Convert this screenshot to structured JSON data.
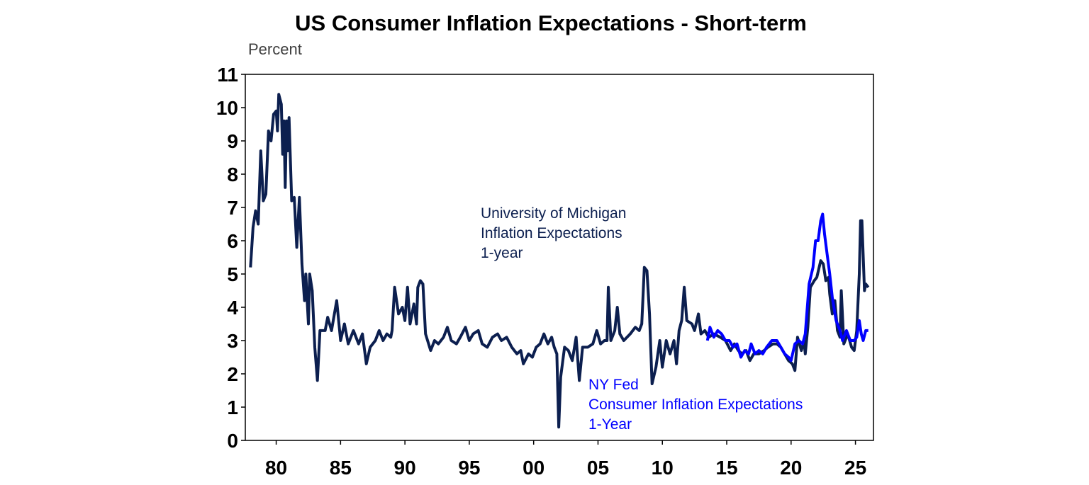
{
  "chart_data": {
    "type": "line",
    "title": "US Consumer Inflation Expectations - Short-term",
    "ylabel": "Percent",
    "xlabel": "",
    "ylim": [
      0,
      11
    ],
    "xlim": [
      1977.6,
      2026.4
    ],
    "grid": false,
    "yticks": [
      "0",
      "1",
      "2",
      "3",
      "4",
      "5",
      "6",
      "7",
      "8",
      "9",
      "10",
      "11"
    ],
    "xticks": [
      {
        "year": 1980,
        "label": "80"
      },
      {
        "year": 1985,
        "label": "85"
      },
      {
        "year": 1990,
        "label": "90"
      },
      {
        "year": 1995,
        "label": "95"
      },
      {
        "year": 2000,
        "label": "00"
      },
      {
        "year": 2005,
        "label": "05"
      },
      {
        "year": 2010,
        "label": "10"
      },
      {
        "year": 2015,
        "label": "15"
      },
      {
        "year": 2020,
        "label": "20"
      },
      {
        "year": 2025,
        "label": "25"
      }
    ],
    "series": [
      {
        "name": "University of Michigan Inflation Expectations 1-year",
        "label_lines": [
          "University of Michigan",
          "Inflation Expectations",
          "1-year"
        ],
        "color": "#0c1f4f",
        "points": [
          [
            1978.0,
            5.2
          ],
          [
            1978.2,
            6.4
          ],
          [
            1978.4,
            6.9
          ],
          [
            1978.6,
            6.5
          ],
          [
            1978.8,
            8.7
          ],
          [
            1979.0,
            7.2
          ],
          [
            1979.2,
            7.4
          ],
          [
            1979.4,
            9.3
          ],
          [
            1979.6,
            9.0
          ],
          [
            1979.8,
            9.8
          ],
          [
            1980.0,
            9.9
          ],
          [
            1980.1,
            9.3
          ],
          [
            1980.2,
            10.4
          ],
          [
            1980.4,
            10.1
          ],
          [
            1980.5,
            8.6
          ],
          [
            1980.6,
            9.6
          ],
          [
            1980.7,
            7.6
          ],
          [
            1980.8,
            9.6
          ],
          [
            1980.9,
            8.7
          ],
          [
            1981.0,
            9.7
          ],
          [
            1981.2,
            7.2
          ],
          [
            1981.4,
            7.3
          ],
          [
            1981.6,
            5.8
          ],
          [
            1981.8,
            7.3
          ],
          [
            1982.0,
            5.3
          ],
          [
            1982.2,
            4.2
          ],
          [
            1982.3,
            5.0
          ],
          [
            1982.5,
            3.5
          ],
          [
            1982.6,
            5.0
          ],
          [
            1982.8,
            4.5
          ],
          [
            1983.0,
            2.8
          ],
          [
            1983.2,
            1.8
          ],
          [
            1983.4,
            3.3
          ],
          [
            1983.8,
            3.3
          ],
          [
            1984.0,
            3.7
          ],
          [
            1984.3,
            3.3
          ],
          [
            1984.7,
            4.2
          ],
          [
            1985.0,
            3.0
          ],
          [
            1985.3,
            3.5
          ],
          [
            1985.6,
            2.9
          ],
          [
            1986.0,
            3.3
          ],
          [
            1986.4,
            2.9
          ],
          [
            1986.7,
            3.2
          ],
          [
            1987.0,
            2.3
          ],
          [
            1987.3,
            2.8
          ],
          [
            1987.7,
            3.0
          ],
          [
            1988.0,
            3.3
          ],
          [
            1988.3,
            3.0
          ],
          [
            1988.6,
            3.2
          ],
          [
            1988.9,
            3.1
          ],
          [
            1989.0,
            3.3
          ],
          [
            1989.2,
            4.6
          ],
          [
            1989.5,
            3.8
          ],
          [
            1989.8,
            4.0
          ],
          [
            1990.0,
            3.6
          ],
          [
            1990.2,
            4.6
          ],
          [
            1990.4,
            3.5
          ],
          [
            1990.7,
            4.1
          ],
          [
            1990.9,
            3.5
          ],
          [
            1991.0,
            4.6
          ],
          [
            1991.2,
            4.8
          ],
          [
            1991.4,
            4.7
          ],
          [
            1991.6,
            3.2
          ],
          [
            1992.0,
            2.7
          ],
          [
            1992.3,
            3.0
          ],
          [
            1992.6,
            2.9
          ],
          [
            1993.0,
            3.1
          ],
          [
            1993.3,
            3.4
          ],
          [
            1993.6,
            3.0
          ],
          [
            1994.0,
            2.9
          ],
          [
            1994.3,
            3.1
          ],
          [
            1994.7,
            3.4
          ],
          [
            1995.0,
            3.0
          ],
          [
            1995.3,
            3.2
          ],
          [
            1995.7,
            3.3
          ],
          [
            1996.0,
            2.9
          ],
          [
            1996.4,
            2.8
          ],
          [
            1996.8,
            3.1
          ],
          [
            1997.2,
            3.2
          ],
          [
            1997.5,
            3.0
          ],
          [
            1997.9,
            3.1
          ],
          [
            1998.3,
            2.8
          ],
          [
            1998.7,
            2.6
          ],
          [
            1999.0,
            2.7
          ],
          [
            1999.2,
            2.3
          ],
          [
            1999.6,
            2.6
          ],
          [
            1999.9,
            2.5
          ],
          [
            2000.2,
            2.8
          ],
          [
            2000.5,
            2.9
          ],
          [
            2000.8,
            3.2
          ],
          [
            2001.1,
            2.9
          ],
          [
            2001.4,
            3.1
          ],
          [
            2001.6,
            2.8
          ],
          [
            2001.8,
            2.6
          ],
          [
            2001.95,
            0.4
          ],
          [
            2002.1,
            1.9
          ],
          [
            2002.4,
            2.8
          ],
          [
            2002.7,
            2.7
          ],
          [
            2003.0,
            2.4
          ],
          [
            2003.3,
            3.1
          ],
          [
            2003.55,
            1.8
          ],
          [
            2003.8,
            2.8
          ],
          [
            2004.2,
            2.8
          ],
          [
            2004.6,
            2.9
          ],
          [
            2004.9,
            3.3
          ],
          [
            2005.2,
            2.9
          ],
          [
            2005.5,
            3.0
          ],
          [
            2005.7,
            3.0
          ],
          [
            2005.8,
            4.6
          ],
          [
            2006.0,
            3.0
          ],
          [
            2006.3,
            3.3
          ],
          [
            2006.5,
            4.0
          ],
          [
            2006.7,
            3.2
          ],
          [
            2007.0,
            3.0
          ],
          [
            2007.5,
            3.2
          ],
          [
            2007.9,
            3.4
          ],
          [
            2008.2,
            3.3
          ],
          [
            2008.4,
            3.5
          ],
          [
            2008.6,
            5.2
          ],
          [
            2008.8,
            5.1
          ],
          [
            2009.0,
            3.8
          ],
          [
            2009.2,
            1.7
          ],
          [
            2009.5,
            2.2
          ],
          [
            2009.8,
            3.0
          ],
          [
            2010.0,
            2.2
          ],
          [
            2010.3,
            3.0
          ],
          [
            2010.6,
            2.6
          ],
          [
            2010.9,
            3.0
          ],
          [
            2011.1,
            2.3
          ],
          [
            2011.3,
            3.3
          ],
          [
            2011.5,
            3.6
          ],
          [
            2011.7,
            4.6
          ],
          [
            2011.9,
            3.6
          ],
          [
            2012.3,
            3.5
          ],
          [
            2012.5,
            3.3
          ],
          [
            2012.8,
            3.8
          ],
          [
            2013.0,
            3.2
          ],
          [
            2013.3,
            3.3
          ],
          [
            2013.6,
            3.1
          ],
          [
            2014.0,
            3.2
          ],
          [
            2014.5,
            3.1
          ],
          [
            2014.9,
            3.0
          ],
          [
            2015.3,
            2.7
          ],
          [
            2015.6,
            2.9
          ],
          [
            2015.9,
            2.7
          ],
          [
            2016.2,
            2.6
          ],
          [
            2016.5,
            2.7
          ],
          [
            2016.8,
            2.4
          ],
          [
            2017.1,
            2.6
          ],
          [
            2017.5,
            2.6
          ],
          [
            2017.9,
            2.7
          ],
          [
            2018.2,
            2.8
          ],
          [
            2018.6,
            2.9
          ],
          [
            2018.9,
            2.9
          ],
          [
            2019.2,
            2.8
          ],
          [
            2019.5,
            2.6
          ],
          [
            2019.8,
            2.4
          ],
          [
            2020.1,
            2.3
          ],
          [
            2020.3,
            2.1
          ],
          [
            2020.5,
            3.1
          ],
          [
            2020.8,
            2.7
          ],
          [
            2021.0,
            3.0
          ],
          [
            2021.1,
            2.6
          ],
          [
            2021.3,
            3.4
          ],
          [
            2021.5,
            4.6
          ],
          [
            2021.8,
            4.8
          ],
          [
            2022.0,
            4.9
          ],
          [
            2022.3,
            5.4
          ],
          [
            2022.5,
            5.3
          ],
          [
            2022.7,
            4.8
          ],
          [
            2022.9,
            4.9
          ],
          [
            2023.0,
            4.4
          ],
          [
            2023.2,
            3.8
          ],
          [
            2023.4,
            4.2
          ],
          [
            2023.6,
            3.3
          ],
          [
            2023.8,
            3.1
          ],
          [
            2023.9,
            4.5
          ],
          [
            2024.1,
            2.9
          ],
          [
            2024.4,
            3.2
          ],
          [
            2024.7,
            2.8
          ],
          [
            2024.9,
            2.7
          ],
          [
            2025.1,
            3.3
          ],
          [
            2025.3,
            5.0
          ],
          [
            2025.4,
            6.6
          ],
          [
            2025.5,
            6.6
          ],
          [
            2025.7,
            4.5
          ],
          [
            2025.8,
            4.7
          ],
          [
            2026.0,
            4.6
          ]
        ]
      },
      {
        "name": "NY Fed Consumer Inflation Expectations 1-Year",
        "label_lines": [
          "NY Fed",
          "Consumer Inflation Expectations",
          "1-Year"
        ],
        "color": "#0000ff",
        "points": [
          [
            2013.5,
            3.0
          ],
          [
            2013.7,
            3.4
          ],
          [
            2014.0,
            3.1
          ],
          [
            2014.3,
            3.3
          ],
          [
            2014.6,
            3.2
          ],
          [
            2014.9,
            3.0
          ],
          [
            2015.2,
            3.0
          ],
          [
            2015.5,
            2.8
          ],
          [
            2015.8,
            2.9
          ],
          [
            2016.1,
            2.5
          ],
          [
            2016.4,
            2.7
          ],
          [
            2016.7,
            2.6
          ],
          [
            2016.9,
            2.9
          ],
          [
            2017.2,
            2.6
          ],
          [
            2017.5,
            2.7
          ],
          [
            2017.8,
            2.6
          ],
          [
            2018.1,
            2.8
          ],
          [
            2018.5,
            3.0
          ],
          [
            2018.9,
            3.0
          ],
          [
            2019.2,
            2.8
          ],
          [
            2019.5,
            2.6
          ],
          [
            2019.8,
            2.5
          ],
          [
            2020.0,
            2.4
          ],
          [
            2020.3,
            2.9
          ],
          [
            2020.6,
            3.0
          ],
          [
            2020.9,
            2.9
          ],
          [
            2021.1,
            3.2
          ],
          [
            2021.4,
            4.7
          ],
          [
            2021.7,
            5.2
          ],
          [
            2021.9,
            6.0
          ],
          [
            2022.1,
            6.0
          ],
          [
            2022.3,
            6.6
          ],
          [
            2022.45,
            6.8
          ],
          [
            2022.6,
            6.2
          ],
          [
            2022.8,
            5.6
          ],
          [
            2023.0,
            5.0
          ],
          [
            2023.2,
            4.3
          ],
          [
            2023.5,
            3.6
          ],
          [
            2023.8,
            3.3
          ],
          [
            2024.0,
            3.0
          ],
          [
            2024.3,
            3.3
          ],
          [
            2024.6,
            3.0
          ],
          [
            2024.9,
            3.0
          ],
          [
            2025.1,
            3.1
          ],
          [
            2025.3,
            3.6
          ],
          [
            2025.45,
            3.2
          ],
          [
            2025.6,
            3.0
          ],
          [
            2025.8,
            3.3
          ],
          [
            2026.0,
            3.3
          ]
        ]
      }
    ]
  }
}
